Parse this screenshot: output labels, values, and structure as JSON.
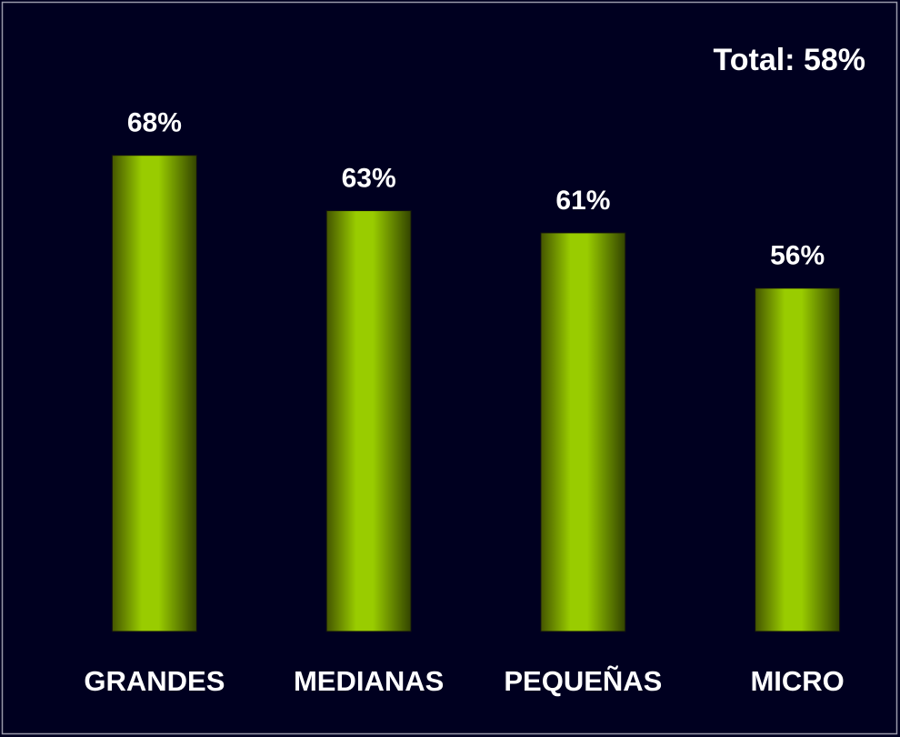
{
  "chart_data": {
    "type": "bar",
    "annotation": "Total: 58%",
    "categories": [
      "GRANDES",
      "MEDIANAS",
      "PEQUEÑAS",
      "MICRO"
    ],
    "values": [
      68,
      63,
      61,
      56
    ],
    "value_labels": [
      "68%",
      "63%",
      "61%",
      "56%"
    ],
    "color": "#99cc00",
    "ylim": [
      25,
      75
    ]
  }
}
